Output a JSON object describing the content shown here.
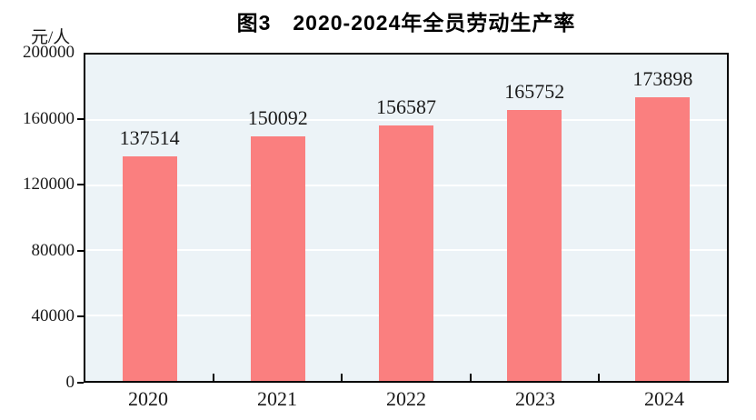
{
  "title": "图3　2020-2024年全员劳动生产率",
  "unit_label": "元/人",
  "colors": {
    "bar_fill": "#fa7f7f",
    "plot_background": "#ecf3f7",
    "gridline": "#ffffff",
    "axis_border": "#000000",
    "text": "#1a1a1a"
  },
  "chart_data": {
    "type": "bar",
    "title": "图3　2020-2024年全员劳动生产率",
    "ylabel": "元/人",
    "xlabel": "",
    "categories": [
      "2020",
      "2021",
      "2022",
      "2023",
      "2024"
    ],
    "values": [
      137514,
      150092,
      156587,
      165752,
      173898
    ],
    "data_labels": [
      "137514",
      "150092",
      "156587",
      "165752",
      "173898"
    ],
    "ylim": [
      0,
      200000
    ],
    "yticks": [
      0,
      40000,
      80000,
      120000,
      160000,
      200000
    ],
    "ytick_labels": [
      "0",
      "40000",
      "80000",
      "120000",
      "160000",
      "200000"
    ],
    "grid": true,
    "legend_position": "none"
  }
}
